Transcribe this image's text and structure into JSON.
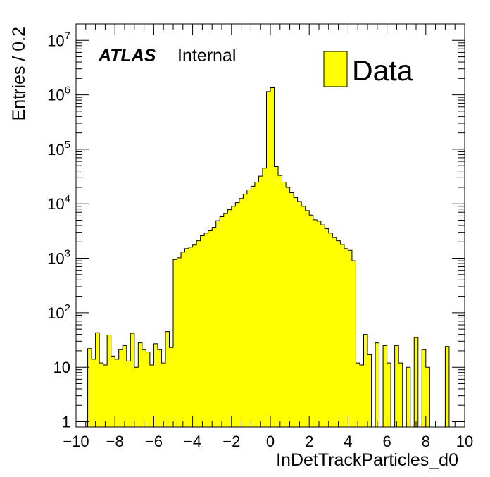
{
  "chart_data": {
    "type": "histogram",
    "xlabel": "InDetTrackParticles_d0",
    "ylabel": "Entries / 0.2",
    "xlim": [
      -10,
      10
    ],
    "ylim": [
      0.8,
      20000000
    ],
    "log_y": true,
    "bin_width": 0.2,
    "x_ticks": [
      "−10",
      "−8",
      "−6",
      "−4",
      "−2",
      "0",
      "2",
      "4",
      "6",
      "8",
      "10"
    ],
    "x_tick_values": [
      -10,
      -8,
      -6,
      -4,
      -2,
      0,
      2,
      4,
      6,
      8,
      10
    ],
    "y_ticks": [
      {
        "value": 1,
        "base": "1",
        "exp": ""
      },
      {
        "value": 10,
        "base": "10",
        "exp": ""
      },
      {
        "value": 100,
        "base": "10",
        "exp": "2"
      },
      {
        "value": 1000,
        "base": "10",
        "exp": "3"
      },
      {
        "value": 10000,
        "base": "10",
        "exp": "4"
      },
      {
        "value": 100000,
        "base": "10",
        "exp": "5"
      },
      {
        "value": 1000000,
        "base": "10",
        "exp": "6"
      },
      {
        "value": 10000000,
        "base": "10",
        "exp": "7"
      }
    ],
    "atlas_label": "ATLAS",
    "atlas_status": "Internal",
    "legend": {
      "label": "Data",
      "position": "top-right"
    },
    "fill_color": "#ffff00",
    "line_color": "#000000",
    "series": [
      {
        "name": "Data",
        "bin_start": -9.4,
        "values": [
          22,
          14,
          43,
          12,
          11,
          39,
          16,
          14,
          21,
          25,
          13,
          42,
          10,
          28,
          21,
          19,
          11,
          27,
          21,
          12,
          45,
          23,
          950,
          1020,
          1300,
          1500,
          1600,
          1750,
          2100,
          2600,
          2900,
          3200,
          3700,
          4900,
          5800,
          6600,
          7800,
          9000,
          10500,
          12500,
          15000,
          18000,
          21000,
          25000,
          32000,
          45000,
          1150000,
          1350000,
          48000,
          33000,
          25000,
          20000,
          16000,
          13000,
          11000,
          9000,
          7500,
          6200,
          5100,
          4800,
          4100,
          3500,
          2900,
          2400,
          2100,
          1800,
          1500,
          1400,
          900,
          12,
          11,
          40,
          17,
          0,
          28,
          0,
          25,
          12,
          0,
          25,
          12,
          0,
          10,
          0,
          35,
          0,
          21,
          10,
          0,
          0,
          0,
          0,
          24
        ]
      }
    ]
  }
}
